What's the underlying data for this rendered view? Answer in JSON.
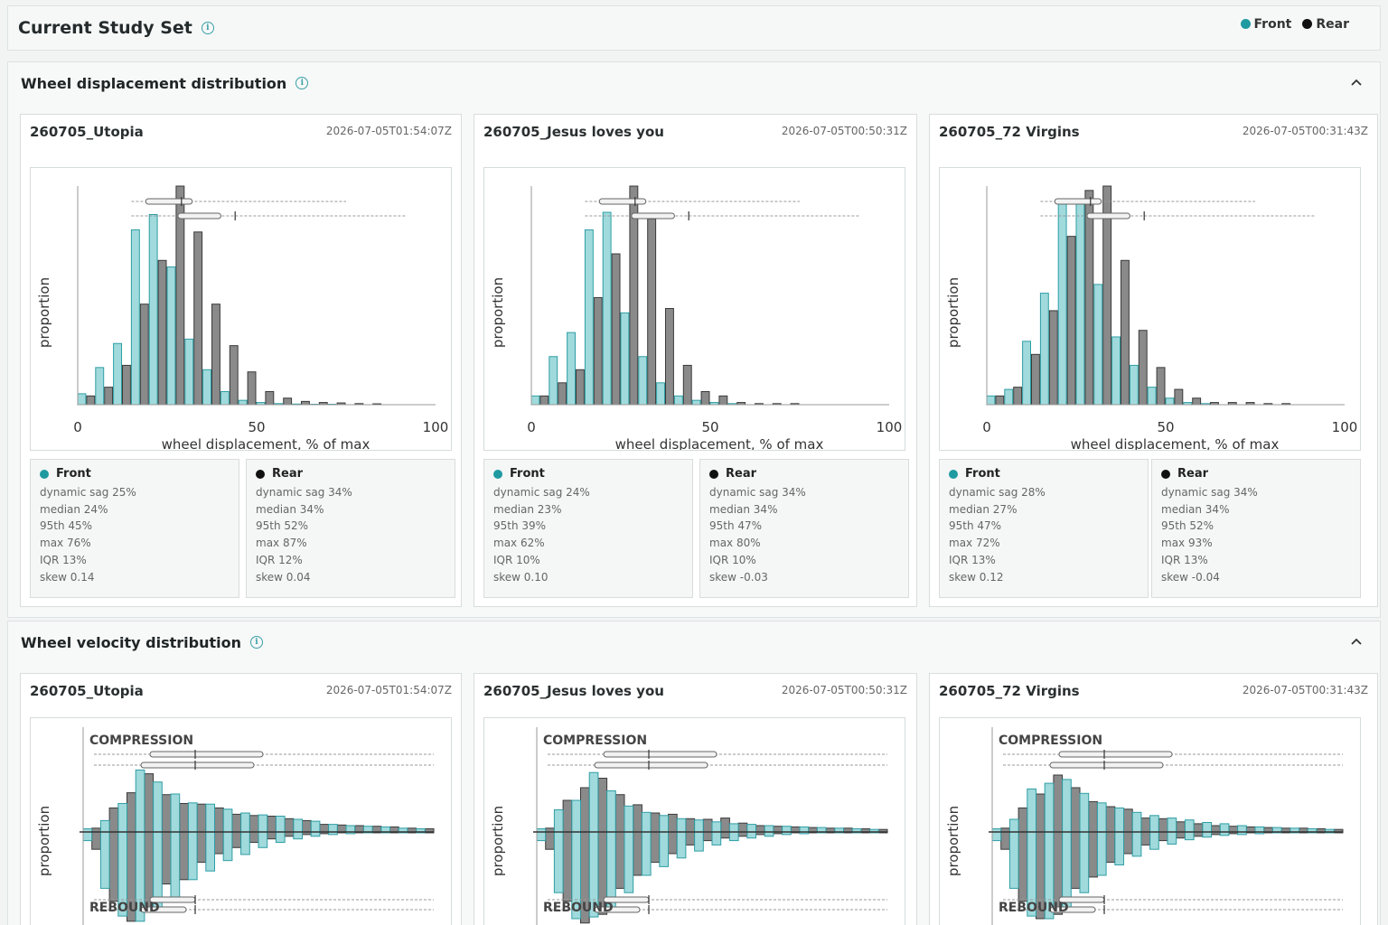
{
  "page": {
    "title": "Current Study Set"
  },
  "legend": {
    "front": "Front",
    "rear": "Rear"
  },
  "colors": {
    "front": "#8fd3d6",
    "front_stroke": "#2f9ea5",
    "rear": "#8a8a8a",
    "rear_stroke": "#3a3a3a",
    "accent": "#1f9aa0"
  },
  "sections": {
    "displacement": {
      "title": "Wheel displacement distribution"
    },
    "velocity": {
      "title": "Wheel velocity distribution"
    }
  },
  "chart_labels": {
    "ylabel": "proportion",
    "xlabel": "wheel displacement, % of max",
    "x_ticks": [
      "0",
      "50",
      "100"
    ],
    "compression": "COMPRESSION",
    "rebound": "REBOUND"
  },
  "cards": [
    {
      "name": "260705_Utopia",
      "time": "2026-07-05T01:54:07Z",
      "front": {
        "title": "Front",
        "lines": [
          "dynamic sag 25%",
          "median 24%",
          "95th 45%",
          "max 76%",
          "IQR 13%",
          "skew 0.14"
        ]
      },
      "rear": {
        "title": "Rear",
        "lines": [
          "dynamic sag 34%",
          "median 34%",
          "95th 52%",
          "max 87%",
          "IQR 12%",
          "skew 0.04"
        ]
      }
    },
    {
      "name": "260705_Jesus loves you",
      "time": "2026-07-05T00:50:31Z",
      "front": {
        "title": "Front",
        "lines": [
          "dynamic sag 24%",
          "median 23%",
          "95th 39%",
          "max 62%",
          "IQR 10%",
          "skew 0.10"
        ]
      },
      "rear": {
        "title": "Rear",
        "lines": [
          "dynamic sag 34%",
          "median 34%",
          "95th 47%",
          "max 80%",
          "IQR 10%",
          "skew -0.03"
        ]
      }
    },
    {
      "name": "260705_72 Virgins",
      "time": "2026-07-05T00:31:43Z",
      "front": {
        "title": "Front",
        "lines": [
          "dynamic sag 28%",
          "median 27%",
          "95th 47%",
          "max 72%",
          "IQR 13%",
          "skew 0.12"
        ]
      },
      "rear": {
        "title": "Rear",
        "lines": [
          "dynamic sag 34%",
          "median 34%",
          "95th 52%",
          "max 93%",
          "IQR 13%",
          "skew -0.04"
        ]
      }
    }
  ],
  "chart_data": [
    {
      "type": "bar",
      "chart": "displacement",
      "x": [
        0,
        5,
        10,
        15,
        20,
        25,
        30,
        35,
        40,
        45,
        50,
        55,
        60,
        65,
        70,
        75,
        80,
        85,
        90,
        95
      ],
      "xlim": [
        0,
        100
      ],
      "series": [
        {
          "name": "Front",
          "values": [
            0.05,
            0.17,
            0.28,
            0.8,
            0.87,
            0.63,
            0.3,
            0.16,
            0.06,
            0.02,
            0.01,
            0.005,
            0.003,
            0.002,
            0.001,
            0.0,
            0.0,
            0.0,
            0.0,
            0.0
          ]
        },
        {
          "name": "Rear",
          "values": [
            0.04,
            0.08,
            0.18,
            0.46,
            0.66,
            1.0,
            0.79,
            0.46,
            0.27,
            0.15,
            0.06,
            0.03,
            0.015,
            0.01,
            0.008,
            0.005,
            0.004,
            0.0,
            0.0,
            0.0
          ]
        }
      ]
    },
    {
      "type": "bar",
      "chart": "displacement",
      "x": [
        0,
        5,
        10,
        15,
        20,
        25,
        30,
        35,
        40,
        45,
        50,
        55,
        60,
        65,
        70,
        75,
        80,
        85,
        90,
        95
      ],
      "xlim": [
        0,
        100
      ],
      "series": [
        {
          "name": "Front",
          "values": [
            0.04,
            0.22,
            0.33,
            0.8,
            0.88,
            0.42,
            0.22,
            0.1,
            0.04,
            0.02,
            0.01,
            0.005,
            0.0,
            0.0,
            0.0,
            0.0,
            0.0,
            0.0,
            0.0,
            0.0
          ]
        },
        {
          "name": "Rear",
          "values": [
            0.04,
            0.1,
            0.16,
            0.49,
            0.69,
            1.0,
            0.85,
            0.44,
            0.18,
            0.06,
            0.04,
            0.01,
            0.005,
            0.005,
            0.005,
            0.0,
            0.0,
            0.0,
            0.0,
            0.0
          ]
        }
      ]
    },
    {
      "type": "bar",
      "chart": "displacement",
      "x": [
        0,
        5,
        10,
        15,
        20,
        25,
        30,
        35,
        40,
        45,
        50,
        55,
        60,
        65,
        70,
        75,
        80,
        85,
        90,
        95
      ],
      "xlim": [
        0,
        100
      ],
      "series": [
        {
          "name": "Front",
          "values": [
            0.04,
            0.07,
            0.29,
            0.51,
            0.93,
            0.94,
            0.55,
            0.31,
            0.18,
            0.08,
            0.03,
            0.01,
            0.005,
            0.0,
            0.0,
            0.0,
            0.0,
            0.0,
            0.0,
            0.0
          ]
        },
        {
          "name": "Rear",
          "values": [
            0.04,
            0.08,
            0.23,
            0.43,
            0.77,
            0.98,
            1.0,
            0.66,
            0.34,
            0.17,
            0.07,
            0.03,
            0.01,
            0.01,
            0.01,
            0.005,
            0.005,
            0.0,
            0.0,
            0.0
          ]
        }
      ]
    },
    {
      "type": "bar",
      "chart": "velocity",
      "series": [
        {
          "name": "Front",
          "compression": [
            0.05,
            0.18,
            0.45,
            0.98,
            0.79,
            0.6,
            0.46,
            0.44,
            0.36,
            0.3,
            0.27,
            0.25,
            0.2,
            0.17,
            0.12,
            0.1,
            0.09,
            0.08,
            0.06,
            0.05
          ],
          "rebound": [
            0.1,
            0.65,
            0.97,
            1.03,
            0.92,
            0.75,
            0.55,
            0.45,
            0.33,
            0.26,
            0.18,
            0.12,
            0.08,
            0.05,
            0.03,
            0.02,
            0.01,
            0.01,
            0.01,
            0.01
          ]
        },
        {
          "name": "Rear",
          "compression": [
            0.06,
            0.38,
            0.62,
            0.92,
            0.59,
            0.45,
            0.44,
            0.38,
            0.28,
            0.26,
            0.25,
            0.21,
            0.18,
            0.12,
            0.11,
            0.1,
            0.09,
            0.08,
            0.06,
            0.05
          ],
          "rebound": [
            0.2,
            0.8,
            1.03,
            0.9,
            0.6,
            0.55,
            0.35,
            0.25,
            0.18,
            0.12,
            0.08,
            0.05,
            0.03,
            0.02,
            0.01,
            0.01,
            0.01,
            0.01,
            0.01,
            0.01
          ]
        }
      ]
    },
    {
      "type": "bar",
      "chart": "velocity",
      "series": [
        {
          "name": "Front",
          "compression": [
            0.05,
            0.35,
            0.5,
            0.94,
            0.65,
            0.41,
            0.31,
            0.26,
            0.21,
            0.19,
            0.16,
            0.13,
            0.12,
            0.1,
            0.09,
            0.08,
            0.07,
            0.06,
            0.05,
            0.04
          ],
          "rebound": [
            0.1,
            0.7,
            1.0,
            0.98,
            0.88,
            0.7,
            0.5,
            0.4,
            0.3,
            0.22,
            0.15,
            0.1,
            0.07,
            0.05,
            0.03,
            0.02,
            0.01,
            0.01,
            0.01,
            0.01
          ]
        },
        {
          "name": "Rear",
          "compression": [
            0.06,
            0.5,
            0.7,
            0.85,
            0.59,
            0.43,
            0.3,
            0.28,
            0.21,
            0.2,
            0.22,
            0.14,
            0.1,
            0.09,
            0.08,
            0.07,
            0.06,
            0.06,
            0.05,
            0.04
          ],
          "rebound": [
            0.2,
            0.8,
            1.05,
            0.95,
            0.65,
            0.5,
            0.35,
            0.25,
            0.15,
            0.1,
            0.07,
            0.05,
            0.03,
            0.02,
            0.01,
            0.01,
            0.01,
            0.01,
            0.01,
            0.01
          ]
        }
      ]
    },
    {
      "type": "bar",
      "chart": "velocity",
      "series": [
        {
          "name": "Front",
          "compression": [
            0.05,
            0.2,
            0.68,
            0.77,
            0.83,
            0.61,
            0.46,
            0.38,
            0.31,
            0.26,
            0.22,
            0.19,
            0.15,
            0.13,
            0.1,
            0.08,
            0.07,
            0.06,
            0.05,
            0.04
          ],
          "rebound": [
            0.1,
            0.65,
            0.97,
            1.0,
            0.9,
            0.7,
            0.5,
            0.38,
            0.28,
            0.2,
            0.14,
            0.09,
            0.06,
            0.04,
            0.03,
            0.02,
            0.01,
            0.01,
            0.01,
            0.01
          ]
        },
        {
          "name": "Rear",
          "compression": [
            0.06,
            0.38,
            0.6,
            0.9,
            0.7,
            0.48,
            0.4,
            0.36,
            0.22,
            0.21,
            0.16,
            0.13,
            0.1,
            0.09,
            0.08,
            0.07,
            0.06,
            0.06,
            0.05,
            0.04
          ],
          "rebound": [
            0.2,
            0.8,
            1.0,
            0.95,
            0.65,
            0.52,
            0.35,
            0.25,
            0.15,
            0.1,
            0.07,
            0.05,
            0.03,
            0.02,
            0.01,
            0.01,
            0.01,
            0.01,
            0.01,
            0.01
          ]
        }
      ]
    }
  ]
}
